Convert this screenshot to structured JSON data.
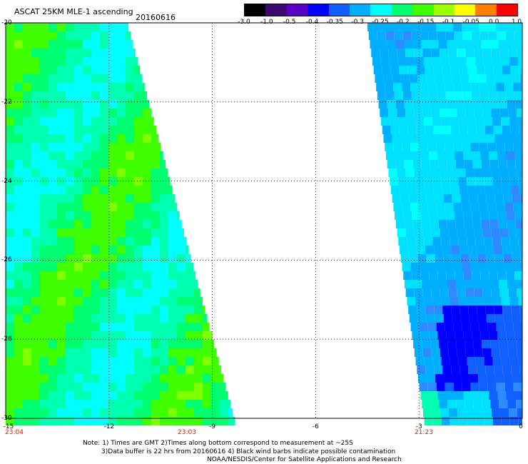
{
  "header": {
    "title": "ASCAT 25KM MLE-1 ascending",
    "date": "20160616"
  },
  "colorbar": {
    "labels": [
      "-3.0",
      "-1.0",
      "-0.5",
      "-0.4",
      "-0.35",
      "-0.3",
      "-0.25",
      "-0.2",
      "-0.15",
      "-0.1",
      "-0.05",
      "0.0",
      "1.0"
    ],
    "colors": [
      "#000000",
      "#3a0a6e",
      "#5a00c8",
      "#0000ff",
      "#1060ff",
      "#00b0ff",
      "#00ffff",
      "#00ff70",
      "#40ff00",
      "#a0ff00",
      "#ffff00",
      "#ff8000",
      "#ff0000"
    ]
  },
  "map": {
    "lon_range": [
      -15,
      0
    ],
    "lat_range": [
      -30,
      -20
    ],
    "x_ticks": [
      "-15",
      "-12",
      "-9",
      "-6",
      "-3",
      "0"
    ],
    "y_ticks": [
      "-20",
      "-22",
      "-24",
      "-26",
      "-28",
      "-30"
    ],
    "times": [
      "23:04",
      "23:03",
      "21:23"
    ],
    "grid": true
  },
  "notes": {
    "line1": "Note: 1) Times are GMT 2)Times along bottom correspond to measurement at ~25S",
    "line2": "3)Data buffer is 22 hrs from 20160616 4) Black wind barbs indicate possible contamination",
    "line3": "NOAA/NESDIS/Center for Satellite Applications and Research"
  }
}
